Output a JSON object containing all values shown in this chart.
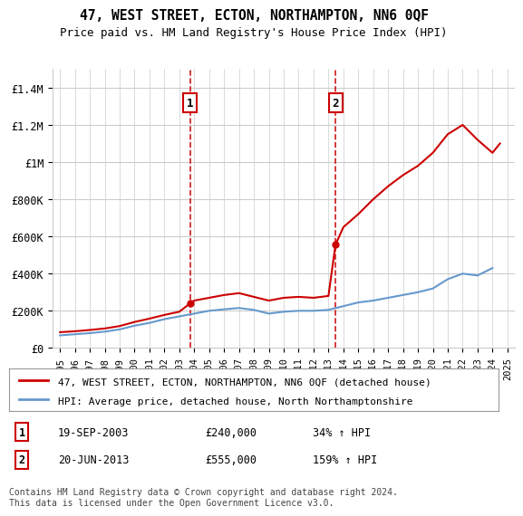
{
  "title": "47, WEST STREET, ECTON, NORTHAMPTON, NN6 0QF",
  "subtitle": "Price paid vs. HM Land Registry's House Price Index (HPI)",
  "legend_line1": "47, WEST STREET, ECTON, NORTHAMPTON, NN6 0QF (detached house)",
  "legend_line2": "HPI: Average price, detached house, North Northamptonshire",
  "footnote": "Contains HM Land Registry data © Crown copyright and database right 2024.\nThis data is licensed under the Open Government Licence v3.0.",
  "sale1_label": "1",
  "sale1_date": "19-SEP-2003",
  "sale1_price": "£240,000",
  "sale1_hpi": "34% ↑ HPI",
  "sale2_label": "2",
  "sale2_date": "20-JUN-2013",
  "sale2_price": "£555,000",
  "sale2_hpi": "159% ↑ HPI",
  "sale1_x": 2003.72,
  "sale1_y": 240000,
  "sale2_x": 2013.47,
  "sale2_y": 555000,
  "vline1_x": 2003.72,
  "vline2_x": 2013.47,
  "hpi_color": "#6699cc",
  "price_color": "#cc0000",
  "vline_color": "#cc0000",
  "background_color": "#ffffff",
  "grid_color": "#cccccc",
  "ylim": [
    0,
    1500000
  ],
  "xlim_start": 1994.5,
  "xlim_end": 2025.5,
  "yticks": [
    0,
    200000,
    400000,
    600000,
    800000,
    1000000,
    1200000,
    1400000
  ],
  "ytick_labels": [
    "£0",
    "£200K",
    "£400K",
    "£600K",
    "£800K",
    "£1M",
    "£1.2M",
    "£1.4M"
  ],
  "xticks": [
    1995,
    1996,
    1997,
    1998,
    1999,
    2000,
    2001,
    2002,
    2003,
    2004,
    2005,
    2006,
    2007,
    2008,
    2009,
    2010,
    2011,
    2012,
    2013,
    2014,
    2015,
    2016,
    2017,
    2018,
    2019,
    2020,
    2021,
    2022,
    2023,
    2024,
    2025
  ],
  "hpi_years": [
    1995,
    1996,
    1997,
    1998,
    1999,
    2000,
    2001,
    2002,
    2003,
    2004,
    2005,
    2006,
    2007,
    2008,
    2009,
    2010,
    2011,
    2012,
    2013,
    2014,
    2015,
    2016,
    2017,
    2018,
    2019,
    2020,
    2021,
    2022,
    2023,
    2024
  ],
  "hpi_values": [
    68000,
    74000,
    80000,
    88000,
    100000,
    120000,
    135000,
    155000,
    170000,
    185000,
    200000,
    208000,
    215000,
    205000,
    185000,
    195000,
    200000,
    200000,
    205000,
    225000,
    245000,
    255000,
    270000,
    285000,
    300000,
    320000,
    370000,
    400000,
    390000,
    430000
  ],
  "price_years": [
    1995,
    1996,
    1997,
    1998,
    1999,
    2000,
    2001,
    2002,
    2003,
    2003.72,
    2004,
    2005,
    2006,
    2007,
    2008,
    2009,
    2010,
    2011,
    2012,
    2013,
    2013.47,
    2014,
    2015,
    2016,
    2017,
    2018,
    2019,
    2020,
    2021,
    2022,
    2023,
    2024,
    2024.5
  ],
  "price_values": [
    85000,
    90000,
    97000,
    105000,
    118000,
    140000,
    158000,
    178000,
    195000,
    240000,
    255000,
    270000,
    285000,
    295000,
    275000,
    255000,
    270000,
    275000,
    270000,
    280000,
    555000,
    650000,
    720000,
    800000,
    870000,
    930000,
    980000,
    1050000,
    1150000,
    1200000,
    1120000,
    1050000,
    1100000
  ]
}
